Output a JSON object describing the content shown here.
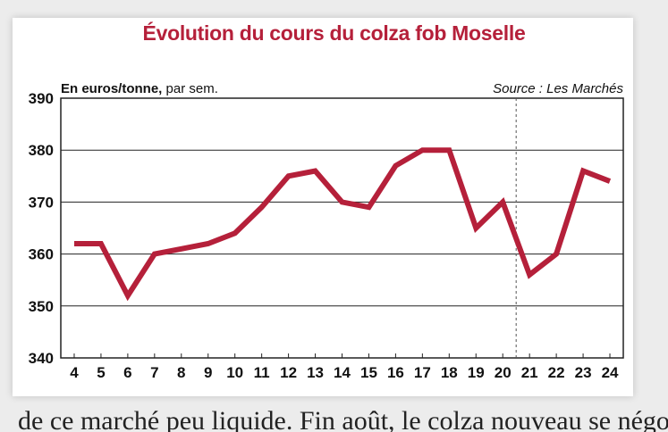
{
  "chart_data": {
    "type": "line",
    "title": "Évolution du cours du colza fob Moselle",
    "unit_label_bold": "En euros/tonne,",
    "unit_label_rest": " par sem.",
    "source": "Source : Les Marchés",
    "x": [
      4,
      5,
      6,
      7,
      8,
      9,
      10,
      11,
      12,
      13,
      14,
      15,
      16,
      17,
      18,
      19,
      20,
      21,
      22,
      23,
      24
    ],
    "y": [
      362,
      362,
      352,
      360,
      361,
      362,
      364,
      369,
      375,
      376,
      370,
      369,
      377,
      380,
      380,
      365,
      370,
      356,
      360,
      376,
      374
    ],
    "ylim": [
      340,
      390
    ],
    "yticks": [
      340,
      350,
      360,
      370,
      380,
      390
    ],
    "grid": true,
    "vline_at_x": 20.5,
    "line_color": "#b5203a"
  },
  "footer_text": "de ce marché peu liquide. Fin août, le colza nouveau se négociait"
}
